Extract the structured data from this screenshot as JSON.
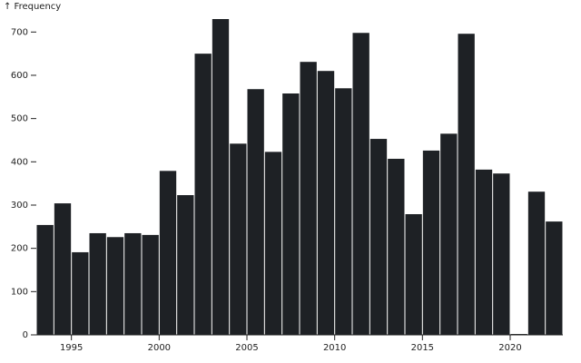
{
  "chart_data": {
    "type": "histogram",
    "y_label": "↑ Frequency",
    "bins": [
      1993,
      1994,
      1995,
      1996,
      1997,
      1998,
      1999,
      2000,
      2001,
      2002,
      2003,
      2004,
      2005,
      2006,
      2007,
      2008,
      2009,
      2010,
      2011,
      2012,
      2013,
      2014,
      2015,
      2016,
      2017,
      2018,
      2019,
      2020,
      2021,
      2022,
      2023
    ],
    "values": [
      254,
      304,
      191,
      235,
      226,
      235,
      231,
      379,
      323,
      650,
      730,
      442,
      568,
      423,
      558,
      631,
      610,
      570,
      698,
      453,
      407,
      279,
      426,
      465,
      696,
      382,
      373,
      2,
      331,
      262
    ],
    "color": "#1e2125",
    "xlim": [
      1993,
      2023
    ],
    "xticks": [
      1995,
      2000,
      2005,
      2010,
      2015,
      2020
    ],
    "ylim": [
      0,
      730
    ],
    "yticks": [
      0,
      100,
      200,
      300,
      400,
      500,
      600,
      700
    ]
  }
}
